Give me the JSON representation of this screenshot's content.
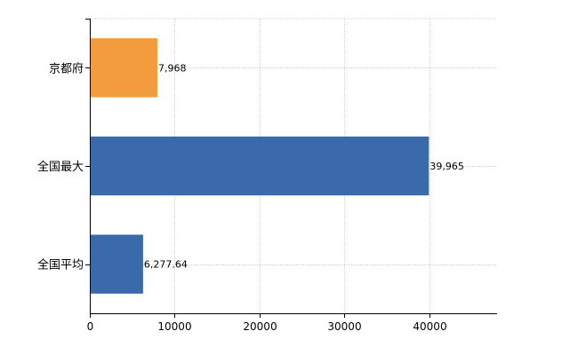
{
  "chart_data": {
    "type": "bar",
    "orientation": "horizontal",
    "categories": [
      "京都府",
      "全国最大",
      "全国平均"
    ],
    "values": [
      7968,
      39965,
      6277.64
    ],
    "data_labels": [
      "7,968",
      "39,965",
      "6,277.64"
    ],
    "bar_colors": [
      "#F39C3D",
      "#3A6AA9",
      "#3A6AA9"
    ],
    "title": "",
    "xlabel": "",
    "ylabel": "",
    "xlim": [
      0,
      48000
    ],
    "x_ticks": [
      0,
      10000,
      20000,
      30000,
      40000
    ],
    "x_tick_labels": [
      "0",
      "10000",
      "20000",
      "30000",
      "40000"
    ],
    "grid": true,
    "legend": "none"
  }
}
